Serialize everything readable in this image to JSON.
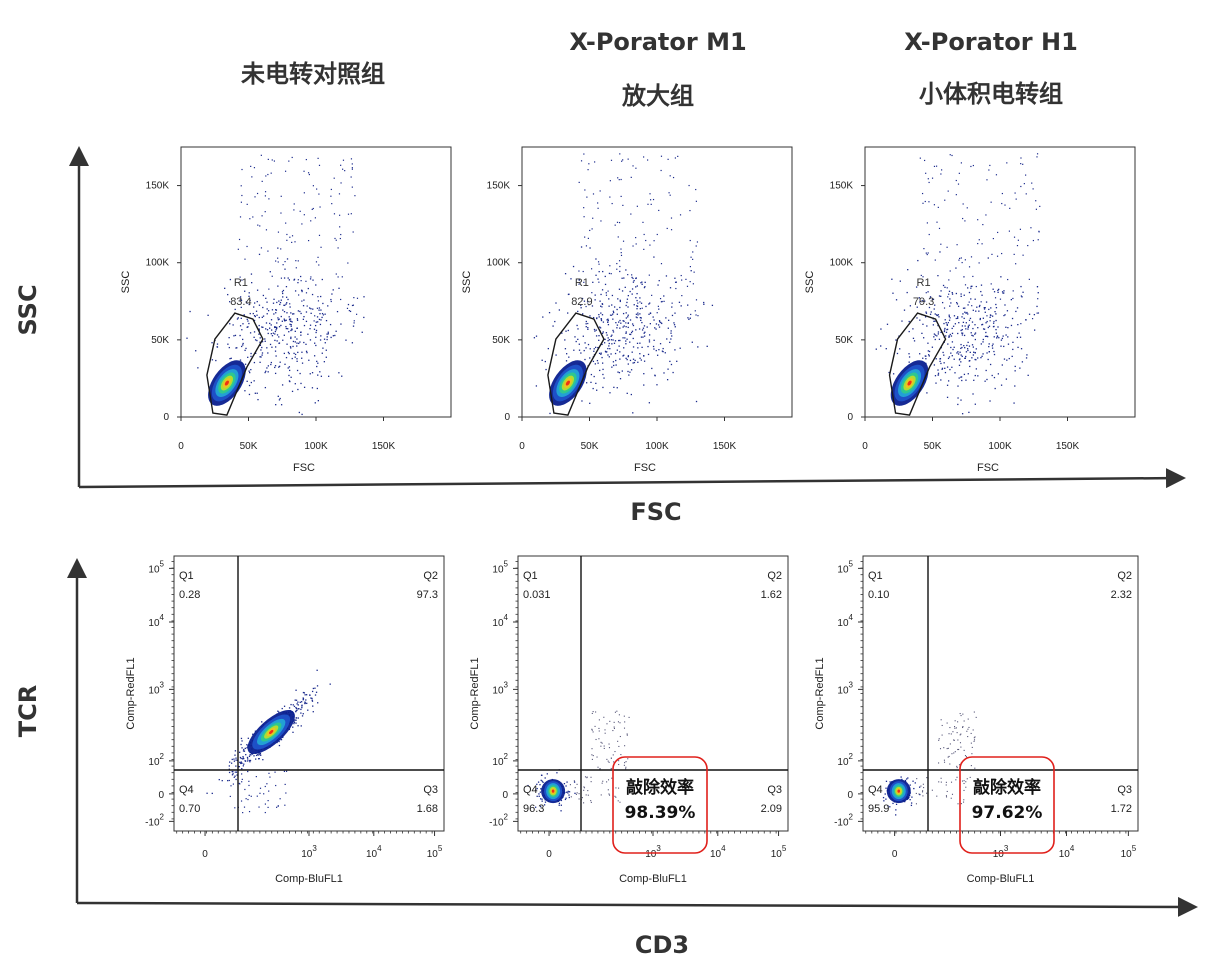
{
  "headers": {
    "col1": [
      "未电转对照组"
    ],
    "col2": [
      "X-Porator M1",
      "放大组"
    ],
    "col3": [
      "X-Porator H1",
      "小体积电转组"
    ]
  },
  "big_axes": {
    "top_y": "SSC",
    "top_x": "FSC",
    "bottom_y": "TCR",
    "bottom_x": "CD3"
  },
  "chart_data": [
    {
      "type": "scatter",
      "panel": "control-fsc-ssc",
      "xlabel": "FSC",
      "ylabel": "SSC",
      "xlim": [
        0,
        200000
      ],
      "ylim": [
        0,
        175000
      ],
      "xticks": [
        {
          "v": 0,
          "t": "0"
        },
        {
          "v": 50000,
          "t": "50K"
        },
        {
          "v": 100000,
          "t": "100K"
        },
        {
          "v": 150000,
          "t": "150K"
        }
      ],
      "yticks": [
        {
          "v": 0,
          "t": "0"
        },
        {
          "v": 50000,
          "t": "50K"
        },
        {
          "v": 100000,
          "t": "100K"
        },
        {
          "v": 150000,
          "t": "150K"
        }
      ],
      "gate": {
        "name": "R1",
        "percent": "83.4"
      },
      "core": {
        "x": 34000,
        "y": 22000
      }
    },
    {
      "type": "scatter",
      "panel": "m1-fsc-ssc",
      "xlabel": "FSC",
      "ylabel": "SSC",
      "xlim": [
        0,
        200000
      ],
      "ylim": [
        0,
        175000
      ],
      "xticks": [
        {
          "v": 0,
          "t": "0"
        },
        {
          "v": 50000,
          "t": "50K"
        },
        {
          "v": 100000,
          "t": "100K"
        },
        {
          "v": 150000,
          "t": "150K"
        }
      ],
      "yticks": [
        {
          "v": 0,
          "t": "0"
        },
        {
          "v": 50000,
          "t": "50K"
        },
        {
          "v": 100000,
          "t": "100K"
        },
        {
          "v": 150000,
          "t": "150K"
        }
      ],
      "gate": {
        "name": "R1",
        "percent": "82.9"
      },
      "core": {
        "x": 34000,
        "y": 22000
      }
    },
    {
      "type": "scatter",
      "panel": "h1-fsc-ssc",
      "xlabel": "FSC",
      "ylabel": "SSC",
      "xlim": [
        0,
        200000
      ],
      "ylim": [
        0,
        175000
      ],
      "xticks": [
        {
          "v": 0,
          "t": "0"
        },
        {
          "v": 50000,
          "t": "50K"
        },
        {
          "v": 100000,
          "t": "100K"
        },
        {
          "v": 150000,
          "t": "150K"
        }
      ],
      "yticks": [
        {
          "v": 0,
          "t": "0"
        },
        {
          "v": 50000,
          "t": "50K"
        },
        {
          "v": 100000,
          "t": "100K"
        },
        {
          "v": 150000,
          "t": "150K"
        }
      ],
      "gate": {
        "name": "R1",
        "percent": "79.3"
      },
      "core": {
        "x": 33000,
        "y": 22000
      }
    },
    {
      "type": "scatter",
      "panel": "control-cd3-tcr",
      "xlabel": "Comp-BluFL1",
      "ylabel": "Comp-RedFL1",
      "scale": "biexponential",
      "quadrants": {
        "Q1": "0.28",
        "Q2": "97.3",
        "Q3": "1.68",
        "Q4": "0.70"
      },
      "knockout": null
    },
    {
      "type": "scatter",
      "panel": "m1-cd3-tcr",
      "xlabel": "Comp-BluFL1",
      "ylabel": "Comp-RedFL1",
      "scale": "biexponential",
      "quadrants": {
        "Q1": "0.031",
        "Q2": "1.62",
        "Q3": "2.09",
        "Q4": "96.3"
      },
      "knockout": {
        "label": "敲除效率",
        "value": "98.39%"
      }
    },
    {
      "type": "scatter",
      "panel": "h1-cd3-tcr",
      "xlabel": "Comp-BluFL1",
      "ylabel": "Comp-RedFL1",
      "scale": "biexponential",
      "quadrants": {
        "Q1": "0.10",
        "Q2": "2.32",
        "Q3": "1.72",
        "Q4": "95.9"
      },
      "knockout": {
        "label": "敲除效率",
        "value": "97.62%"
      }
    }
  ],
  "colors": {
    "axis": "#333333",
    "text": "#222222",
    "header": "#333333",
    "dot": "#1a2a8c",
    "gate": "#1a1a1a",
    "knockout_box": "#e0201b",
    "density": [
      "#0a1f8f",
      "#1f52c9",
      "#23a4d6",
      "#2fc98c",
      "#b8de2c",
      "#f3c020",
      "#ee2a14"
    ]
  }
}
